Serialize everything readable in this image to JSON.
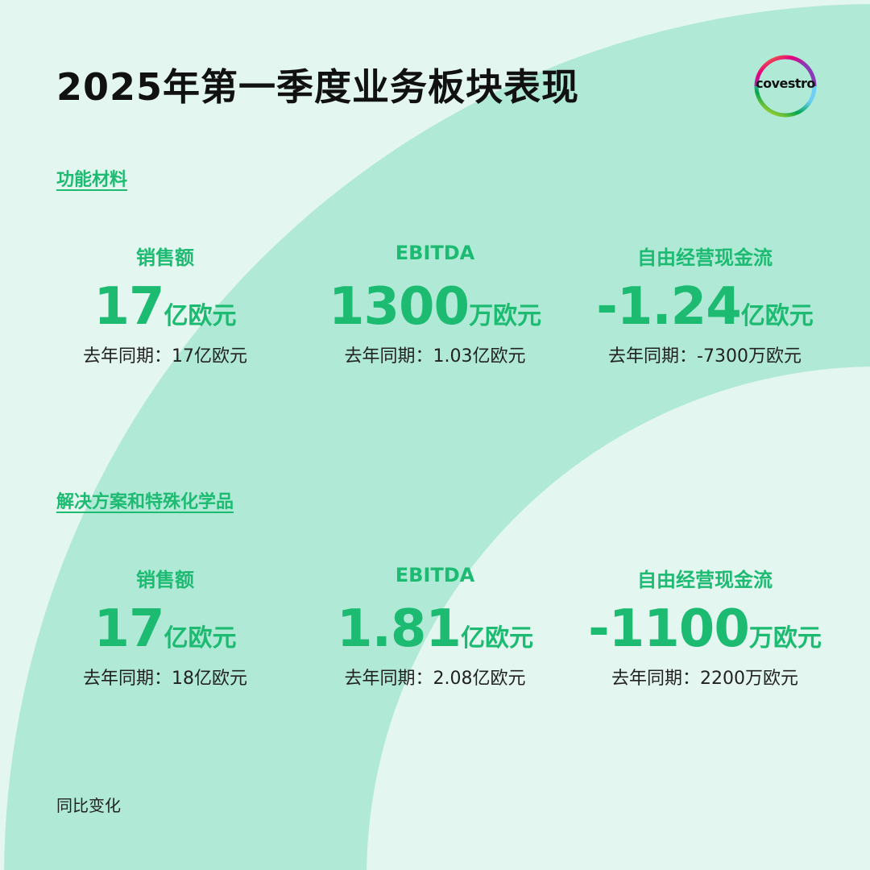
{
  "title": "2025年第一季度业务板块表现",
  "logo": {
    "text": "covestro"
  },
  "colors": {
    "accent": "#1dbb72",
    "background": "#e3f6ef",
    "arc": "#b0ead6"
  },
  "sections": [
    {
      "name": "功能材料",
      "metrics": [
        {
          "label": "销售额",
          "value": "17",
          "unit": "亿欧元",
          "previous": "去年同期：17亿欧元"
        },
        {
          "label": "EBITDA",
          "value": "1300",
          "unit": "万欧元",
          "previous": "去年同期：1.03亿欧元"
        },
        {
          "label": "自由经营现金流",
          "value": "-1.24",
          "unit": "亿欧元",
          "previous": "去年同期：-7300万欧元"
        }
      ]
    },
    {
      "name": "解决方案和特殊化学品",
      "metrics": [
        {
          "label": "销售额",
          "value": "17",
          "unit": "亿欧元",
          "previous": "去年同期：18亿欧元"
        },
        {
          "label": "EBITDA",
          "value": "1.81",
          "unit": "亿欧元",
          "previous": "去年同期：2.08亿欧元"
        },
        {
          "label": "自由经营现金流",
          "value": "-1100",
          "unit": "万欧元",
          "previous": "去年同期：2200万欧元"
        }
      ]
    }
  ],
  "footer": "同比变化"
}
